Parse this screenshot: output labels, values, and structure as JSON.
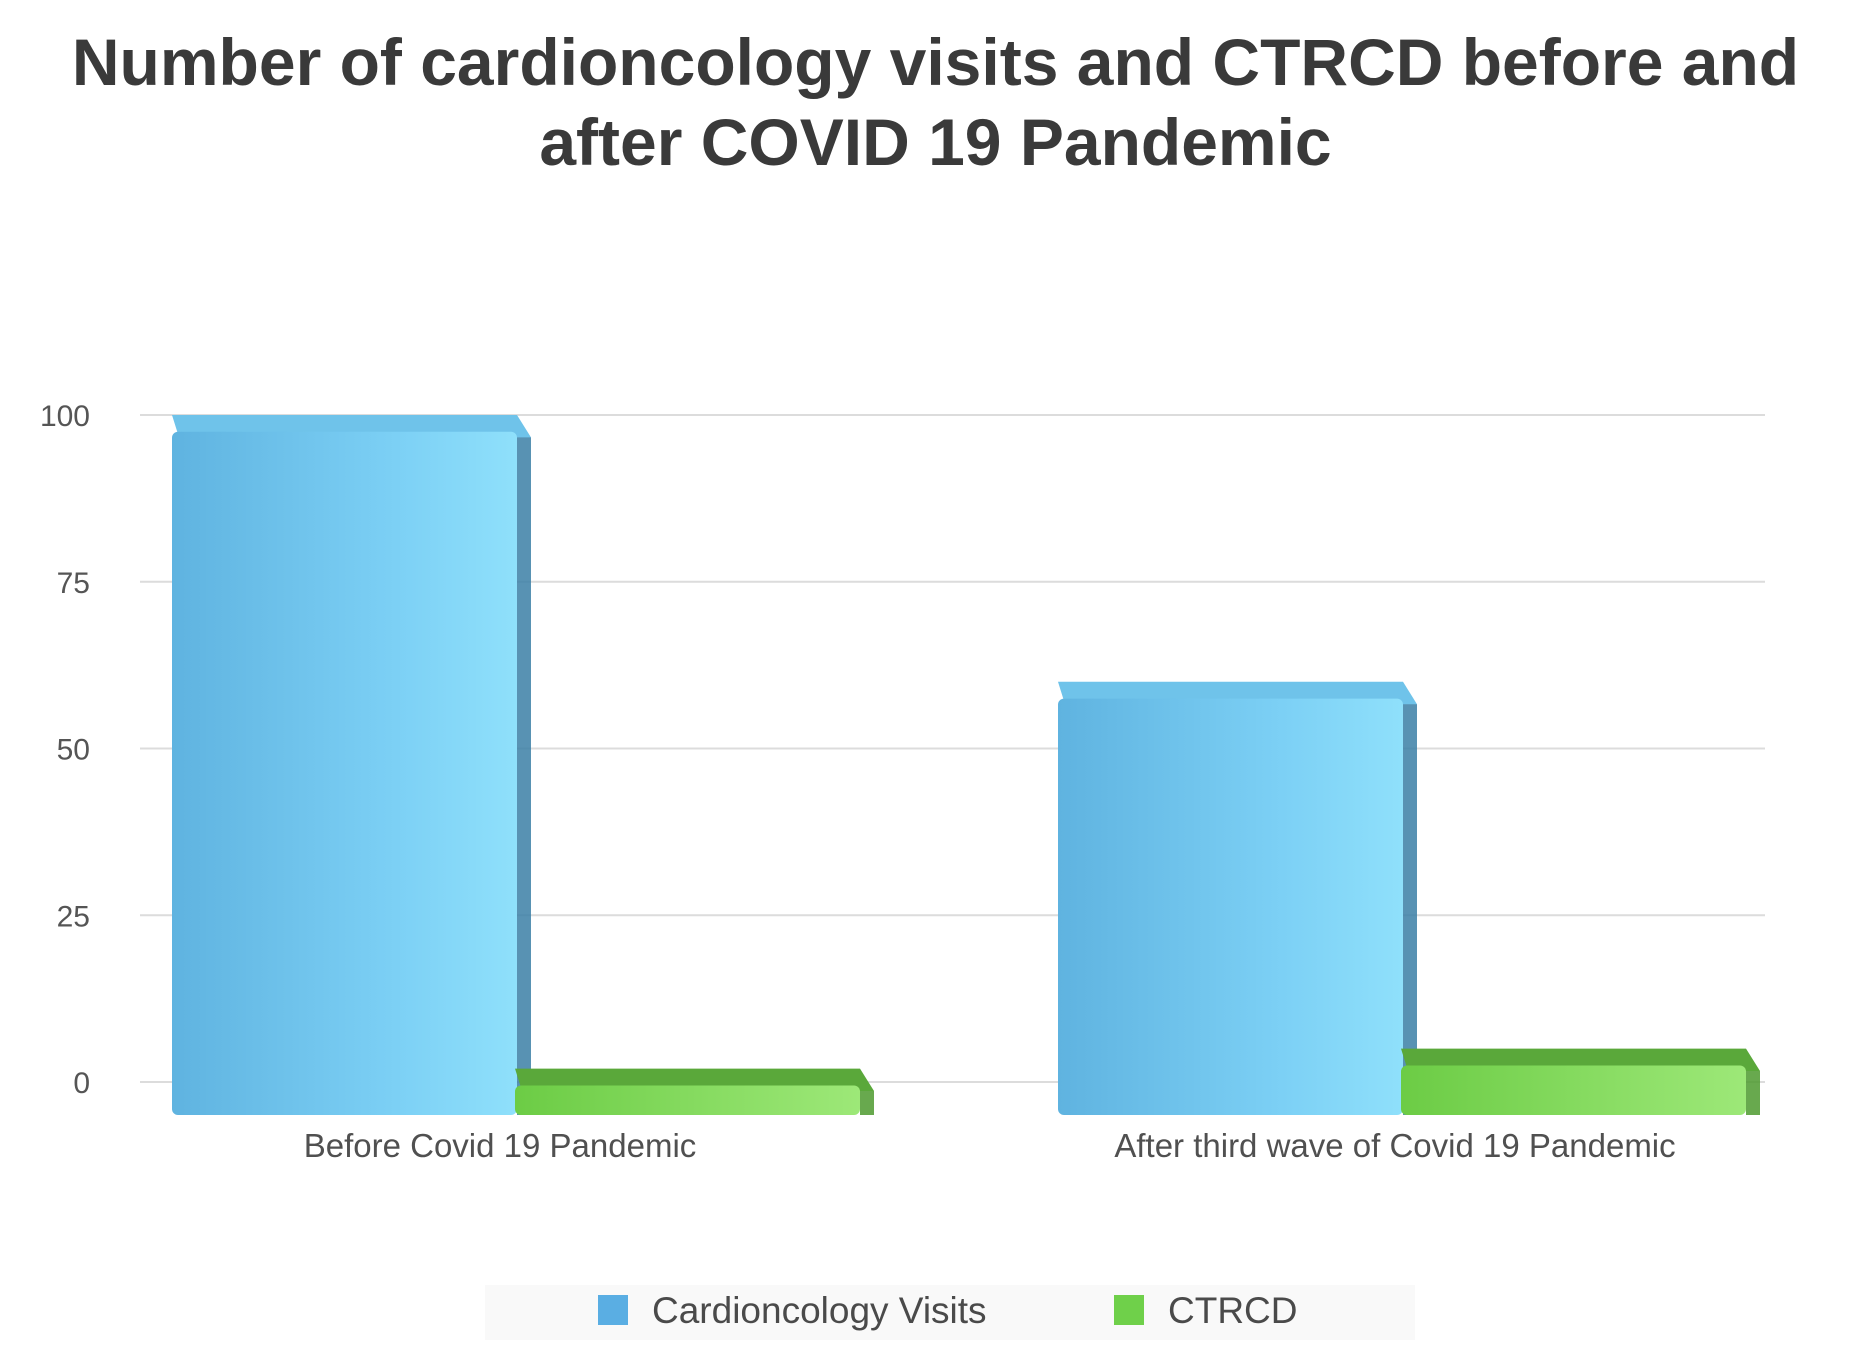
{
  "chart_data": {
    "type": "bar",
    "title": "Number of cardioncology visits and CTRCD  before and after COVID 19 Pandemic",
    "categories": [
      "Before Covid 19 Pandemic",
      "After third wave of Covid 19 Pandemic"
    ],
    "series": [
      {
        "name": "Cardioncology Visits",
        "values": [
          100,
          60
        ],
        "color": "#7fd3f5"
      },
      {
        "name": "CTRCD",
        "values": [
          2,
          5
        ],
        "color": "#8ee06a"
      }
    ],
    "xlabel": "",
    "ylabel": "",
    "ylim": [
      0,
      100
    ],
    "yticks": [
      0,
      25,
      50,
      75,
      100
    ],
    "grid": true,
    "legend": "bottom-center"
  }
}
